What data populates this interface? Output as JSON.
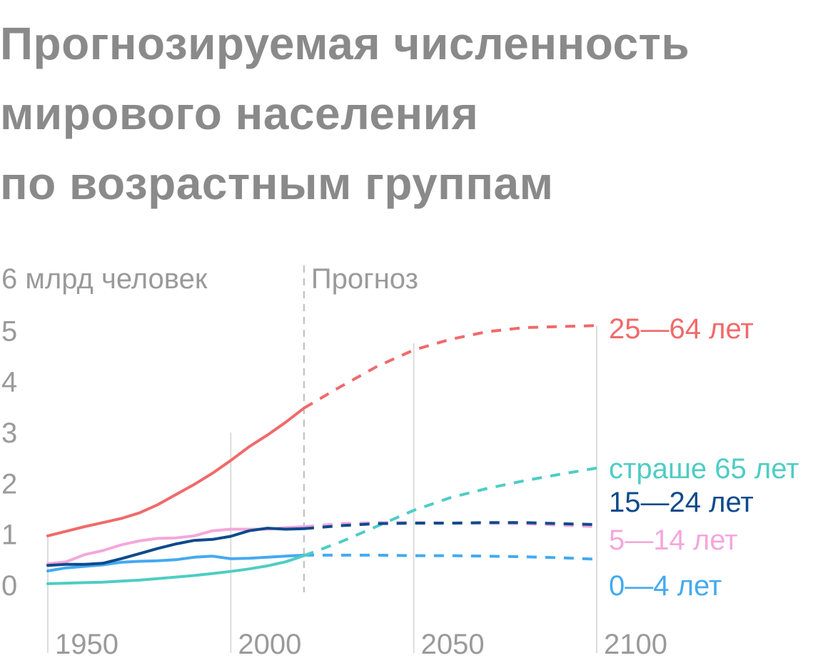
{
  "title_lines": [
    "Прогнозируемая численность",
    "мирового населения",
    "по возрастным группам"
  ],
  "chart_data": {
    "type": "line",
    "title": "Прогнозируемая численность мирового населения по возрастным группам",
    "ylabel": "6 млрд человек",
    "forecast_label": "Прогноз",
    "forecast_start": 2020,
    "xlim": [
      1950,
      2100
    ],
    "ylim": [
      0,
      6
    ],
    "x_ticks": [
      "1950",
      "2000",
      "2050",
      "2100"
    ],
    "y_ticks": [
      "0",
      "1",
      "2",
      "3",
      "4",
      "5"
    ],
    "grid_x": [
      1950,
      2000,
      2050,
      2100
    ],
    "series": [
      {
        "name": "25—64 лет",
        "color": "#f06a6a",
        "label_value": 5.05,
        "x": [
          1950,
          1955,
          1960,
          1965,
          1970,
          1975,
          1980,
          1985,
          1990,
          1995,
          2000,
          2005,
          2010,
          2015,
          2020,
          2030,
          2040,
          2050,
          2060,
          2070,
          2080,
          2090,
          2100
        ],
        "values": [
          0.97,
          1.06,
          1.15,
          1.23,
          1.31,
          1.42,
          1.58,
          1.78,
          1.98,
          2.2,
          2.45,
          2.72,
          2.95,
          3.2,
          3.48,
          3.9,
          4.3,
          4.62,
          4.83,
          4.98,
          5.06,
          5.08,
          5.1
        ]
      },
      {
        "name": "страше 65 лет",
        "color": "#4ecdc4",
        "label_value": 2.3,
        "x": [
          1950,
          1955,
          1960,
          1965,
          1970,
          1975,
          1980,
          1985,
          1990,
          1995,
          2000,
          2005,
          2010,
          2015,
          2020,
          2030,
          2040,
          2050,
          2060,
          2070,
          2080,
          2090,
          2100
        ],
        "values": [
          0.03,
          0.04,
          0.05,
          0.06,
          0.08,
          0.1,
          0.13,
          0.16,
          0.19,
          0.23,
          0.27,
          0.32,
          0.38,
          0.46,
          0.58,
          0.85,
          1.16,
          1.47,
          1.72,
          1.9,
          2.05,
          2.18,
          2.3
        ]
      },
      {
        "name": "15—24 лет",
        "color": "#0d4a8c",
        "label_value": 1.64,
        "x": [
          1950,
          1955,
          1960,
          1965,
          1970,
          1975,
          1980,
          1985,
          1990,
          1995,
          2000,
          2005,
          2010,
          2015,
          2020,
          2030,
          2040,
          2050,
          2060,
          2070,
          2080,
          2090,
          2100
        ],
        "values": [
          0.39,
          0.41,
          0.41,
          0.43,
          0.52,
          0.62,
          0.72,
          0.81,
          0.88,
          0.9,
          0.96,
          1.07,
          1.12,
          1.1,
          1.11,
          1.17,
          1.21,
          1.22,
          1.22,
          1.23,
          1.23,
          1.21,
          1.19
        ]
      },
      {
        "name": "5—14 лет",
        "color": "#f4a7dc",
        "label_value": 0.9,
        "x": [
          1950,
          1955,
          1960,
          1965,
          1970,
          1975,
          1980,
          1985,
          1990,
          1995,
          2000,
          2005,
          2010,
          2015,
          2020,
          2030,
          2040,
          2050,
          2060,
          2070,
          2080,
          2090,
          2100
        ],
        "values": [
          0.42,
          0.46,
          0.6,
          0.68,
          0.79,
          0.87,
          0.92,
          0.93,
          0.97,
          1.07,
          1.1,
          1.1,
          1.1,
          1.13,
          1.15,
          1.21,
          1.23,
          1.23,
          1.22,
          1.22,
          1.21,
          1.18,
          1.15
        ]
      },
      {
        "name": "0—4 лет",
        "color": "#44aaf0",
        "label_value": 0.0,
        "x": [
          1950,
          1955,
          1960,
          1965,
          1970,
          1975,
          1980,
          1985,
          1990,
          1995,
          2000,
          2005,
          2010,
          2015,
          2020,
          2030,
          2040,
          2050,
          2060,
          2070,
          2080,
          2090,
          2100
        ],
        "values": [
          0.28,
          0.34,
          0.37,
          0.4,
          0.45,
          0.47,
          0.48,
          0.5,
          0.55,
          0.57,
          0.52,
          0.53,
          0.55,
          0.57,
          0.59,
          0.59,
          0.59,
          0.58,
          0.58,
          0.57,
          0.56,
          0.54,
          0.51
        ]
      }
    ]
  }
}
